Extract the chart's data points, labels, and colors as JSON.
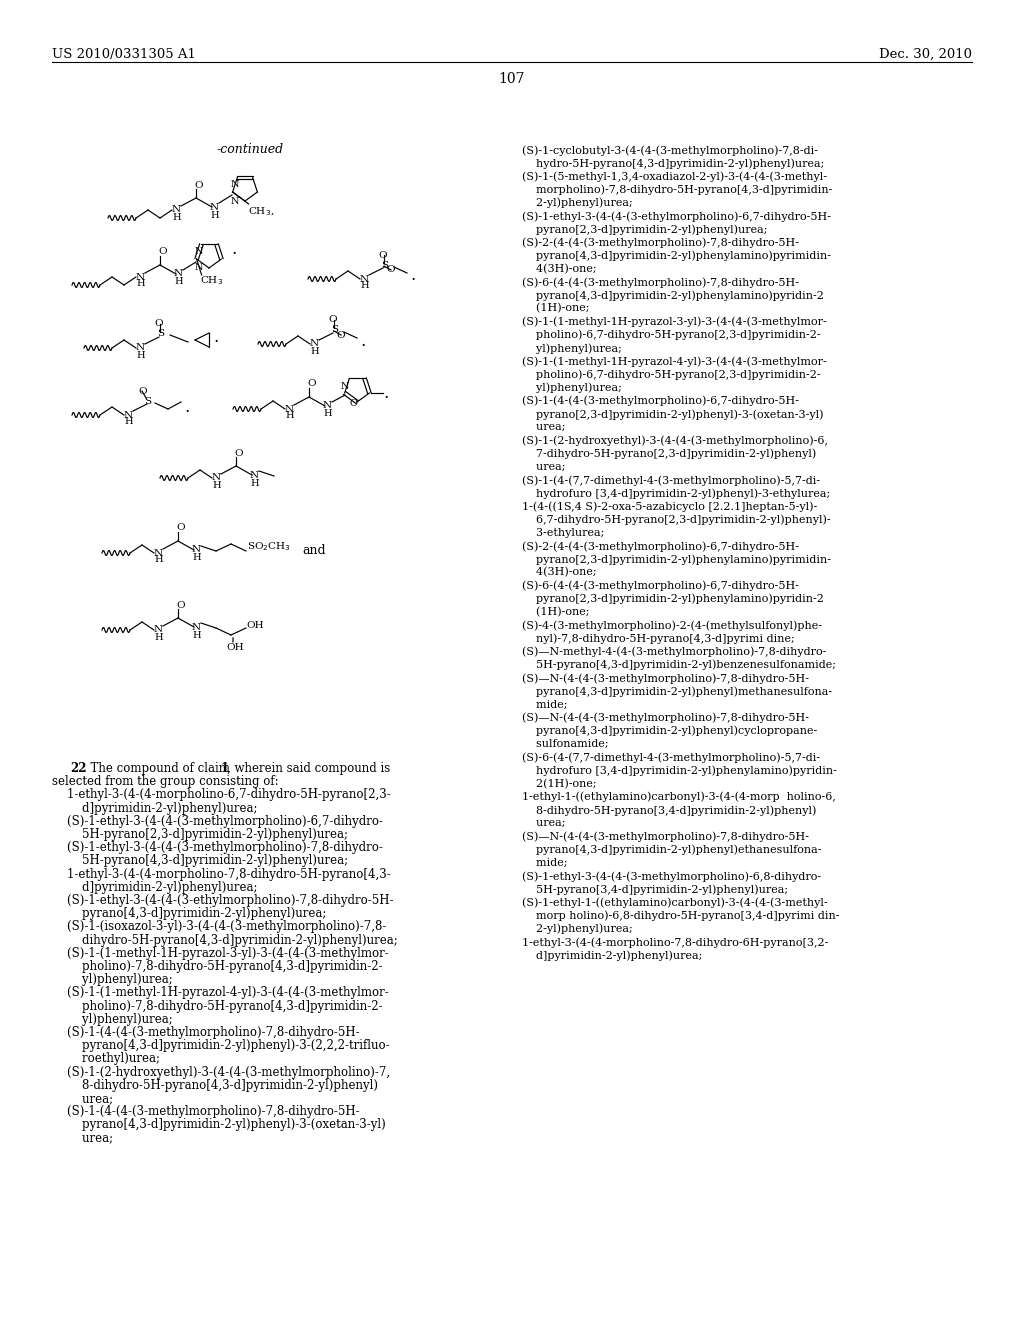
{
  "header_left": "US 2010/0331305 A1",
  "header_right": "Dec. 30, 2010",
  "page_number": "107",
  "right_col_lines": [
    "    (S)-1-cyclobutyl-3-(4-(4-(3-methylmorpholino)-7,8-di-",
    "        hydro-5H-pyrano[4,3-d]pyrimidin-2-yl)phenyl)urea;",
    "    (S)-1-(5-methyl-1,3,4-oxadiazol-2-yl)-3-(4-(4-(3-methyl-",
    "        morpholino)-7,8-dihydro-5H-pyrano[4,3-d]pyrimidin-",
    "        2-yl)phenyl)urea;",
    "    (S)-1-ethyl-3-(4-(4-(3-ethylmorpholino)-6,7-dihydro-5H-",
    "        pyrano[2,3-d]pyrimidin-2-yl)phenyl)urea;",
    "    (S)-2-(4-(4-(3-methylmorpholino)-7,8-dihydro-5H-",
    "        pyrano[4,3-d]pyrimidin-2-yl)phenylamino)pyrimidin-",
    "        4(3H)-one;",
    "    (S)-6-(4-(4-(3-methylmorpholino)-7,8-dihydro-5H-",
    "        pyrano[4,3-d]pyrimidin-2-yl)phenylamino)pyridin-2",
    "        (1H)-one;",
    "    (S)-1-(1-methyl-1H-pyrazol-3-yl)-3-(4-(4-(3-methylmor-",
    "        pholino)-6,7-dihydro-5H-pyrano[2,3-d]pyrimidin-2-",
    "        yl)phenyl)urea;",
    "    (S)-1-(1-methyl-1H-pyrazol-4-yl)-3-(4-(4-(3-methylmor-",
    "        pholino)-6,7-dihydro-5H-pyrano[2,3-d]pyrimidin-2-",
    "        yl)phenyl)urea;",
    "    (S)-1-(4-(4-(3-methylmorpholino)-6,7-dihydro-5H-",
    "        pyrano[2,3-d]pyrimidin-2-yl)phenyl)-3-(oxetan-3-yl)",
    "        urea;",
    "    (S)-1-(2-hydroxyethyl)-3-(4-(4-(3-methylmorpholino)-6,",
    "        7-dihydro-5H-pyrano[2,3-d]pyrimidin-2-yl)phenyl)",
    "        urea;",
    "    (S)-1-(4-(7,7-dimethyl-4-(3-methylmorpholino)-5,7-di-",
    "        hydrofuro [3,4-d]pyrimidin-2-yl)phenyl)-3-ethylurea;",
    "    1-(4-((1S,4 S)-2-oxa-5-azabicyclo [2.2.1]heptan-5-yl)-",
    "        6,7-dihydro-5H-pyrano[2,3-d]pyrimidin-2-yl)phenyl)-",
    "        3-ethylurea;",
    "    (S)-2-(4-(4-(3-methylmorpholino)-6,7-dihydro-5H-",
    "        pyrano[2,3-d]pyrimidin-2-yl)phenylamino)pyrimidin-",
    "        4(3H)-one;",
    "    (S)-6-(4-(4-(3-methylmorpholino)-6,7-dihydro-5H-",
    "        pyrano[2,3-d]pyrimidin-2-yl)phenylamino)pyridin-2",
    "        (1H)-one;",
    "    (S)-4-(3-methylmorpholino)-2-(4-(methylsulfonyl)phe-",
    "        nyl)-7,8-dihydro-5H-pyrano[4,3-d]pyrimi dine;",
    "    (S)—N-methyl-4-(4-(3-methylmorpholino)-7,8-dihydro-",
    "        5H-pyrano[4,3-d]pyrimidin-2-yl)benzenesulfonamide;",
    "    (S)—N-(4-(4-(3-methylmorpholino)-7,8-dihydro-5H-",
    "        pyrano[4,3-d]pyrimidin-2-yl)phenyl)methanesulfona-",
    "        mide;",
    "    (S)—N-(4-(4-(3-methylmorpholino)-7,8-dihydro-5H-",
    "        pyrano[4,3-d]pyrimidin-2-yl)phenyl)cyclopropane-",
    "        sulfonamide;",
    "    (S)-6-(4-(7,7-dimethyl-4-(3-methylmorpholino)-5,7-di-",
    "        hydrofuro [3,4-d]pyrimidin-2-yl)phenylamino)pyridin-",
    "        2(1H)-one;",
    "    1-ethyl-1-((ethylamino)carbonyl)-3-(4-(4-morp  holino-6,",
    "        8-dihydro-5H-pyrano[3,4-d]pyrimidin-2-yl)phenyl)",
    "        urea;",
    "    (S)—N-(4-(4-(3-methylmorpholino)-7,8-dihydro-5H-",
    "        pyrano[4,3-d]pyrimidin-2-yl)phenyl)ethanesulfona-",
    "        mide;",
    "    (S)-1-ethyl-3-(4-(4-(3-methylmorpholino)-6,8-dihydro-",
    "        5H-pyrano[3,4-d]pyrimidin-2-yl)phenyl)urea;",
    "    (S)-1-ethyl-1-((ethylamino)carbonyl)-3-(4-(4-(3-methyl-",
    "        morp holino)-6,8-dihydro-5H-pyrano[3,4-d]pyrimi din-",
    "        2-yl)phenyl)urea;",
    "    1-ethyl-3-(4-(4-morpholino-7,8-dihydro-6H-pyrano[3,2-",
    "        d]pyrimidin-2-yl)phenyl)urea;"
  ],
  "left_claim_lines": [
    "    1-ethyl-3-(4-(4-morpholino-6,7-dihydro-5H-pyrano[2,3-",
    "        d]pyrimidin-2-yl)phenyl)urea;",
    "    (S)-1-ethyl-3-(4-(4-(3-methylmorpholino)-6,7-dihydro-",
    "        5H-pyrano[2,3-d]pyrimidin-2-yl)phenyl)urea;",
    "    (S)-1-ethyl-3-(4-(4-(3-methylmorpholino)-7,8-dihydro-",
    "        5H-pyrano[4,3-d]pyrimidin-2-yl)phenyl)urea;",
    "    1-ethyl-3-(4-(4-morpholino-7,8-dihydro-5H-pyrano[4,3-",
    "        d]pyrimidin-2-yl)phenyl)urea;",
    "    (S)-1-ethyl-3-(4-(4-(3-ethylmorpholino)-7,8-dihydro-5H-",
    "        pyrano[4,3-d]pyrimidin-2-yl)phenyl)urea;",
    "    (S)-1-(isoxazol-3-yl)-3-(4-(4-(3-methylmorpholino)-7,8-",
    "        dihydro-5H-pyrano[4,3-d]pyrimidin-2-yl)phenyl)urea;",
    "    (S)-1-(1-methyl-1H-pyrazol-3-yl)-3-(4-(4-(3-methylmor-",
    "        pholino)-7,8-dihydro-5H-pyrano[4,3-d]pyrimidin-2-",
    "        yl)phenyl)urea;",
    "    (S)-1-(1-methyl-1H-pyrazol-4-yl)-3-(4-(4-(3-methylmor-",
    "        pholino)-7,8-dihydro-5H-pyrano[4,3-d]pyrimidin-2-",
    "        yl)phenyl)urea;",
    "    (S)-1-(4-(4-(3-methylmorpholino)-7,8-dihydro-5H-",
    "        pyrano[4,3-d]pyrimidin-2-yl)phenyl)-3-(2,2,2-trifluo-",
    "        roethyl)urea;",
    "    (S)-1-(2-hydroxyethyl)-3-(4-(4-(3-methylmorpholino)-7,",
    "        8-dihydro-5H-pyrano[4,3-d]pyrimidin-2-yl)phenyl)",
    "        urea;",
    "    (S)-1-(4-(4-(3-methylmorpholino)-7,8-dihydro-5H-",
    "        pyrano[4,3-d]pyrimidin-2-yl)phenyl)-3-(oxetan-3-yl)",
    "        urea;"
  ]
}
